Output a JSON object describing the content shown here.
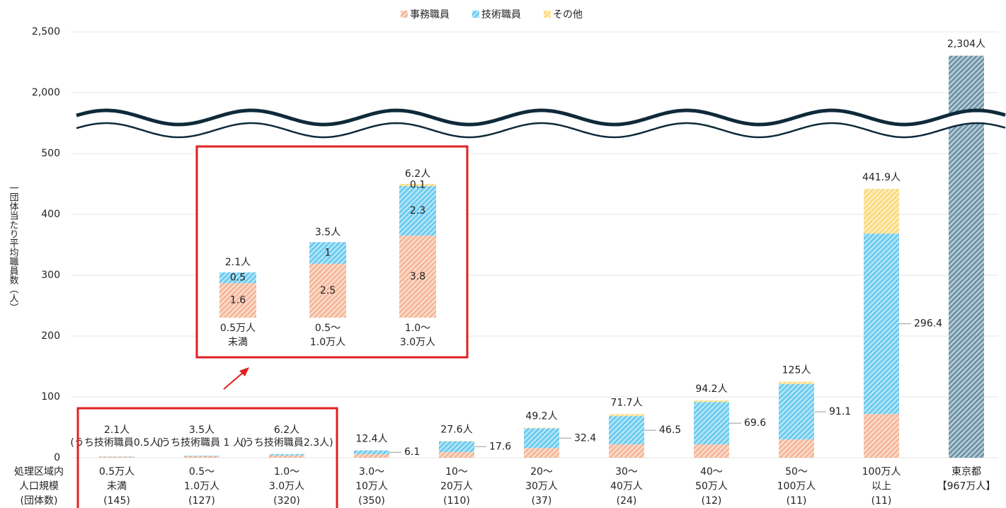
{
  "chart_data": {
    "type": "bar",
    "stacked": true,
    "y_label": "一団体当たり平均職員数（人）",
    "x_label": "処理区域内\n人口規模\n(団体数)",
    "categories": [
      "0.5万人\n未満\n(145)",
      "0.5～\n1.0万人\n(127)",
      "1.0～\n3.0万人\n(320)",
      "3.0～\n10万人\n(350)",
      "10～\n20万人\n(110)",
      "20～\n30万人\n(37)",
      "30～\n40万人\n(24)",
      "40～\n50万人\n(12)",
      "50～\n100万人\n(11)",
      "100万人\n以上\n(11)",
      "東京都\n【967万人】"
    ],
    "series": [
      {
        "name": "事務職員",
        "color": "#f5b08f",
        "values": [
          1.6,
          2.5,
          3.8,
          6.0,
          9.5,
          16.0,
          22.0,
          22.0,
          30.0,
          72.0,
          null
        ]
      },
      {
        "name": "技術職員",
        "color": "#5cc6ee",
        "values": [
          0.5,
          1.0,
          2.3,
          6.1,
          17.6,
          32.4,
          46.5,
          69.6,
          91.1,
          296.4,
          null
        ]
      },
      {
        "name": "その他",
        "color": "#fcd772",
        "values": [
          0,
          0,
          0.1,
          0.3,
          0.5,
          0.8,
          3.2,
          2.6,
          3.9,
          73.5,
          null
        ]
      }
    ],
    "totals": {
      "color": "#5f8aa0",
      "values": [
        2.1,
        3.5,
        6.2,
        12.4,
        27.6,
        49.2,
        71.7,
        94.2,
        125,
        441.9,
        2304
      ],
      "value_labels": [
        "2.1人",
        "3.5人",
        "6.2人",
        "12.4人",
        "27.6人",
        "49.2人",
        "71.7人",
        "94.2人",
        "125人",
        "441.9人",
        "2,304人"
      ]
    },
    "annotations": [
      "(うち技術職員0.5人)",
      "(うち技術職員 1 人)",
      "(うち技術職員2.3人)"
    ],
    "inset": {
      "categories": [
        "0.5万人\n未満",
        "0.5～\n1.0万人",
        "1.0～\n3.0万人"
      ]
    },
    "ylim": [
      0,
      2500
    ],
    "axis_break": [
      500,
      2000
    ],
    "yticks": [
      0,
      100,
      200,
      300,
      400,
      500,
      {
        "value": 2000,
        "label": "2,000"
      },
      {
        "value": 2500,
        "label": "2,500"
      }
    ],
    "grid": true,
    "legend": "top"
  }
}
